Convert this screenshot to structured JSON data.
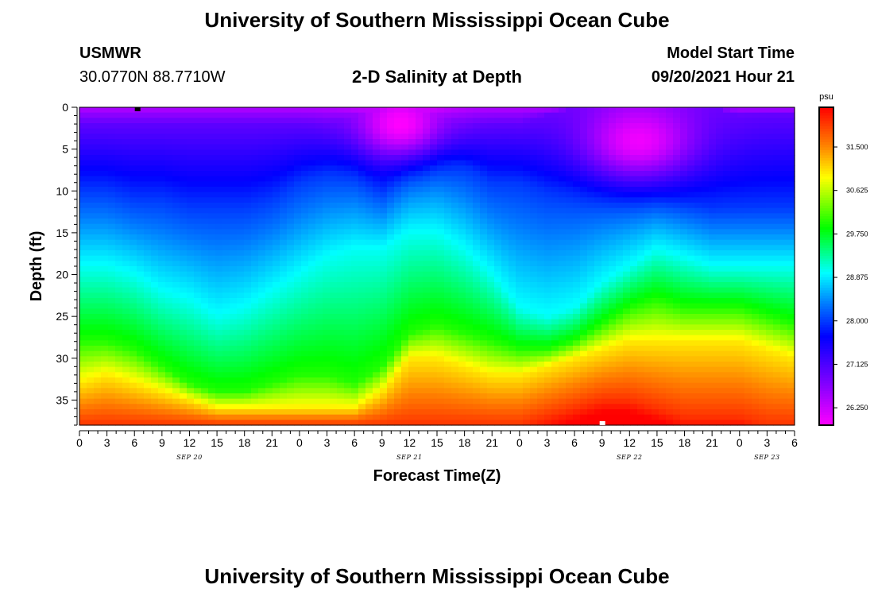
{
  "header": {
    "title": "University of Southern Mississippi Ocean Cube",
    "station": "USMWR",
    "coords": "30.0770N  88.7710W",
    "subtitle": "2-D Salinity at Depth",
    "model_label": "Model Start Time",
    "model_time": "09/20/2021 Hour 21"
  },
  "footer": {
    "title": "University of Southern Mississippi Ocean Cube"
  },
  "chart_data": {
    "type": "heatmap",
    "title": "2-D Salinity at Depth",
    "xlabel": "Forecast Time(Z)",
    "ylabel": "Depth (ft)",
    "x_units": "hours since 09/20 00Z",
    "xlim": [
      0,
      78
    ],
    "ylim": [
      38,
      0
    ],
    "x_tick_labels": [
      "0",
      "3",
      "6",
      "9",
      "12",
      "15",
      "18",
      "21",
      "0",
      "3",
      "6",
      "9",
      "12",
      "15",
      "18",
      "21",
      "0",
      "3",
      "6",
      "9",
      "12",
      "15",
      "18",
      "21",
      "0",
      "3",
      "6"
    ],
    "y_ticks": [
      0,
      5,
      10,
      15,
      20,
      25,
      30,
      35
    ],
    "date_labels": [
      {
        "label": "SEP 20",
        "hour": 12
      },
      {
        "label": "SEP 21",
        "hour": 36
      },
      {
        "label": "SEP 22",
        "hour": 60
      },
      {
        "label": "SEP 23",
        "hour": 75
      }
    ],
    "colorbar": {
      "unit": "psu",
      "min": 25.9,
      "max": 32.3,
      "ticks": [
        "31.500",
        "30.625",
        "29.750",
        "28.875",
        "28.000",
        "27.125",
        "26.250"
      ],
      "tick_values": [
        31.5,
        30.625,
        29.75,
        28.875,
        28.0,
        27.125,
        26.25
      ]
    },
    "isolines": {
      "hours": [
        0,
        3,
        6,
        9,
        12,
        15,
        18,
        21,
        24,
        27,
        30,
        33,
        36,
        39,
        42,
        45,
        48,
        51,
        54,
        57,
        60,
        63,
        66,
        69,
        72,
        75,
        78
      ],
      "depth_27.0": [
        2,
        2,
        2,
        2,
        2,
        2,
        2,
        2,
        2,
        2,
        1,
        0,
        0,
        1,
        2,
        2,
        2,
        1,
        0,
        0,
        0,
        0,
        0,
        0,
        1,
        1,
        1
      ],
      "depth_28.0": [
        10,
        10,
        11,
        11,
        12,
        12,
        12,
        11,
        9,
        8,
        8,
        10,
        7,
        6,
        7,
        9,
        9,
        10,
        10,
        10,
        10,
        10,
        11,
        12,
        12,
        12,
        12
      ],
      "depth_29.0": [
        19,
        19,
        20,
        22,
        23,
        25,
        24,
        22,
        20,
        18,
        17,
        17,
        15,
        15,
        17,
        20,
        24,
        25,
        24,
        21,
        19,
        17,
        18,
        19,
        19,
        19,
        19
      ],
      "depth_30.0": [
        28,
        28,
        29,
        31,
        33,
        34,
        34,
        33,
        32,
        32,
        33,
        31,
        27,
        26,
        27,
        28,
        29,
        29,
        28,
        26,
        24,
        23,
        24,
        24,
        24,
        25,
        26
      ],
      "depth_31.0": [
        33,
        32,
        33,
        34,
        35,
        36,
        36,
        36,
        36,
        36,
        36,
        34,
        30,
        30,
        31,
        32,
        32,
        31,
        30,
        29,
        28,
        28,
        28,
        28,
        28,
        29,
        30
      ],
      "depth_32.0": [
        38,
        38,
        38,
        38,
        38,
        38,
        38,
        38,
        38,
        38,
        38,
        38,
        38,
        38,
        38,
        38,
        38,
        37,
        36,
        35,
        35,
        36,
        37,
        37,
        37,
        38,
        38
      ]
    },
    "hotspots": [
      {
        "hour": 35,
        "depth": 2,
        "value": 25.9,
        "radius_h": 6,
        "radius_d": 5
      },
      {
        "hour": 61,
        "depth": 4,
        "value": 26.0,
        "radius_h": 8,
        "radius_d": 6
      }
    ]
  }
}
